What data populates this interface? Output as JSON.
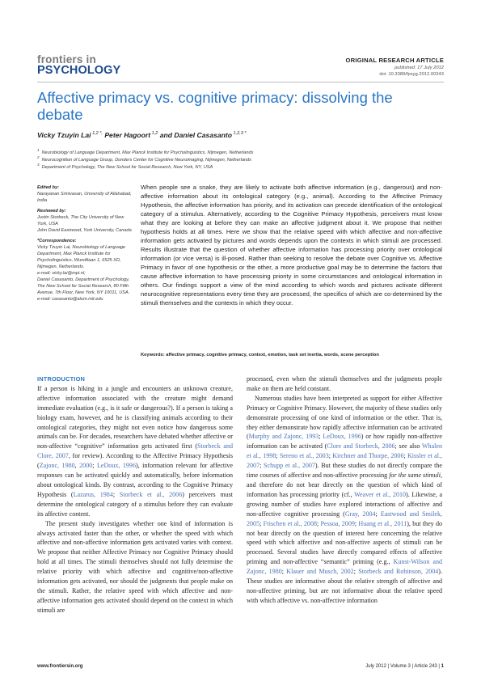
{
  "logo": {
    "line1": "frontiers in",
    "line2": "PSYCHOLOGY"
  },
  "header": {
    "article_type": "ORIGINAL RESEARCH ARTICLE",
    "published": "published: 17 July 2012",
    "doi": "doi: 10.3389/fpsyg.2012.00243"
  },
  "title": "Affective primacy vs. cognitive primacy: dissolving the debate",
  "authors": [
    {
      "name": "Vicky Tzuyin Lai",
      "sup": " 1,2 *,"
    },
    {
      "name": "Peter Hagoort",
      "sup": " 1,2"
    },
    {
      "name": "and Daniel Casasanto",
      "sup": " 1,2,3 *"
    }
  ],
  "affiliations": [
    {
      "num": "1",
      "text": "Neurobiology of Language Department, Max Planck Institute for Psycholinguistics, Nijmegen, Netherlands"
    },
    {
      "num": "2",
      "text": "Neurocognition of Language Group, Donders Center for Cognitive Neuroimaging, Nijmegen, Netherlands"
    },
    {
      "num": "3",
      "text": "Department of Psychology, The New School for Social Research, New York, NY, USA"
    }
  ],
  "meta": {
    "edited_by_label": "Edited by:",
    "edited_by": "Narayanan Srinivasan, University of Allahabad, India",
    "reviewed_by_label": "Reviewed by:",
    "reviewer1": "Justin Storbeck, The City University of New York, USA",
    "reviewer2": "John David Eastwood, York University, Canada",
    "correspondence_label": "*Correspondence:",
    "corr1": "Vicky Tzuyin Lai, Neurobiology of Language Department, Max Planck Institute for Psycholinguistics, Wundtlaan 1, 6525 XD, Nijmegen, Netherlands.",
    "corr1_email": "e-mail: vicky.lai@mpi.nl;",
    "corr2": "Daniel Casasanto, Department of Psychology, The New School for Social Research, 80 Fifth Avenue, 7th Floor, New York, NY 10011, USA.",
    "corr2_email": "e-mail: casasanto@alum.mit.edu"
  },
  "abstract": "When people see a snake, they are likely to activate both affective information (e.g., dangerous) and non-affective information about its ontological category (e.g., animal). According to the Affective Primacy Hypothesis, the affective information has priority, and its activation can precede identification of the ontological category of a stimulus. Alternatively, according to the Cognitive Primacy Hypothesis, perceivers must know what they are looking at before they can make an affective judgment about it. We propose that neither hypothesis holds at all times. Here we show that the relative speed with which affective and non-affective information gets activated by pictures and words depends upon the contexts in which stimuli are processed. Results illustrate that the question of whether affective information has processing priority over ontological information (or vice versa) is ill-posed. Rather than seeking to resolve the debate over Cognitive vs. Affective Primacy in favor of one hypothesis or the other, a more productive goal may be to determine the factors that cause affective information to have processing priority in some circumstances and ontological information in others. Our findings support a view of the mind according to which words and pictures activate different neurocognitive representations every time they are processed, the specifics of which are co-determined by the stimuli themselves and the contexts in which they occur.",
  "keywords": {
    "label": "Keywords:",
    "text": "affective primacy, cognitive primacy, context, emotion, task set inertia, words, scene perception"
  },
  "body": {
    "section1": "INTRODUCTION",
    "left_p1": [
      {
        "t": "If a person is hiking in a jungle and encounters an unknown creature, affective information associated with the creature might demand immediate evaluation (e.g., is it safe or dangerous?). If a person is taking a biology exam, however, and he is classifying animals according to their ontological categories, they might not even notice how dangerous some animals can be. For decades, researchers have debated whether affective or non-affective “cognitive” information gets activated first ("
      },
      {
        "c": "Storbeck and Clore, 2007"
      },
      {
        "t": ", for review). According to the Affective Primacy Hypothesis ("
      },
      {
        "c": "Zajonc, 1980"
      },
      {
        "t": ", "
      },
      {
        "c": "2000"
      },
      {
        "t": "; "
      },
      {
        "c": "LeDoux, 1996"
      },
      {
        "t": "), information relevant for affective responses can be activated quickly and automatically, before information about ontological kinds. By contrast, according to the Cognitive Primacy Hypothesis ("
      },
      {
        "c": "Lazarus, 1984"
      },
      {
        "t": "; "
      },
      {
        "c": "Storbeck et al., 2006"
      },
      {
        "t": ") perceivers must determine the ontological category of a stimulus before they can evaluate its affective content."
      }
    ],
    "left_p2": "The present study investigates whether one kind of information is always activated faster than the other, or whether the speed with which affective and non-affective information gets activated varies with context. We propose that neither Affective Primacy nor Cognitive Primacy should hold at all times. The stimuli themselves should not fully determine the relative priority with which affective and cognitive/non-affective information gets activated, nor should the judgments that people make on the stimuli. Rather, the relative speed with which affective and non-affective information gets activated should depend on the context in which stimuli are",
    "right_p1": "processed, even when the stimuli themselves and the judgments people make on them are held constant.",
    "right_p2": [
      {
        "t": "Numerous studies have been interpreted as support for either Affective Primacy or Cognitive Primacy. However, the majority of these studies only demonstrate processing of one kind of information or the other. That is, they either demonstrate how rapidly affective information can be activated ("
      },
      {
        "c": "Murphy and Zajonc, 1993"
      },
      {
        "t": "; "
      },
      {
        "c": "LeDoux, 1996"
      },
      {
        "t": ") or how rapidly non-affective information can be activated ("
      },
      {
        "c": "Clore and Storbeck, 2006"
      },
      {
        "t": "; see also "
      },
      {
        "c": "Whalen et al., 1998"
      },
      {
        "t": "; "
      },
      {
        "c": "Sereno et al., 2003"
      },
      {
        "t": "; "
      },
      {
        "c": "Kirchner and Thorpe, 2006"
      },
      {
        "t": "; "
      },
      {
        "c": "Kissler et al., 2007"
      },
      {
        "t": "; "
      },
      {
        "c": "Schupp et al., 2007"
      },
      {
        "t": "). But these studies do not directly compare the time courses of affective and non-affective processing "
      },
      {
        "i": "for the same stimuli"
      },
      {
        "t": ", and therefore do not bear directly on the question of which kind of information has processing priority (cf., "
      },
      {
        "c": "Weaver et al., 2010"
      },
      {
        "t": "). Likewise, a growing number of studies have explored interactions of affective and non-affective cognitive processing ("
      },
      {
        "c": "Gray, 2004"
      },
      {
        "t": "; "
      },
      {
        "c": "Eastwood and Smilek, 2005"
      },
      {
        "t": "; "
      },
      {
        "c": "Frischen et al., 2008"
      },
      {
        "t": "; "
      },
      {
        "c": "Pessoa, 2009"
      },
      {
        "t": "; "
      },
      {
        "c": "Huang et al., 2011"
      },
      {
        "t": "), but they do not bear directly on the question of interest here concerning the relative speed with which affective and non-affective aspects of stimuli can be processed. Several studies have directly compared effects of affective priming and non-affective “semantic” priming (e.g., "
      },
      {
        "c": "Kunst-Wilson and Zajonc, 1980"
      },
      {
        "t": "; "
      },
      {
        "c": "Klauer and Musch, 2002"
      },
      {
        "t": "; "
      },
      {
        "c": "Storbeck and Robinson, 2004"
      },
      {
        "t": "). These studies are informative about the relative strength of affective and non-affective priming, but are not informative about the relative speed with which affective vs. non-affective information"
      }
    ]
  },
  "footer": {
    "url": "www.frontiersin.org",
    "issue": "July 2012 | Volume 3 | Article 243 | ",
    "page": "1"
  }
}
